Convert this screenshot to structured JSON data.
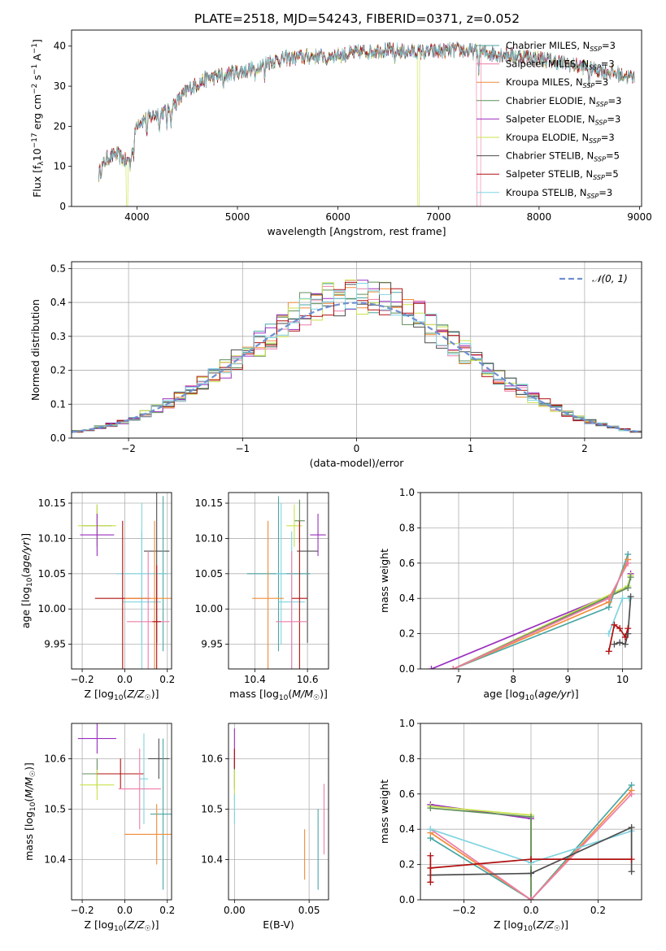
{
  "figure": {
    "title": "PLATE=2518, MJD=54243, FIBERID=0371, z=0.052"
  },
  "colors": {
    "Chabrier MILES": "#4aa6a6",
    "Salpeter MILES": "#ee7ca8",
    "Kroupa MILES": "#f08c38",
    "Chabrier ELODIE": "#5f8f5a",
    "Salpeter ELODIE": "#9b2fbf",
    "Kroupa ELODIE": "#c9e24a",
    "Chabrier STELIB": "#4d4d4d",
    "Salpeter STELIB": "#b01010",
    "Kroupa STELIB": "#80d4e0",
    "fit_blue": "#5b86d6",
    "normal": "#6f8fd0"
  },
  "chart_data": [
    {
      "id": "spectrum",
      "type": "line",
      "title": "PLATE=2518, MJD=54243, FIBERID=0371, z=0.052",
      "xlabel": "wavelength [Angstrom, rest frame]",
      "ylabel": "Flux [f_λ 10^-17 erg cm^-2 s^-1 A^-1]",
      "xlim": [
        3350,
        9020
      ],
      "ylim": [
        0,
        44
      ],
      "xticks": [
        4000,
        5000,
        6000,
        7000,
        8000,
        9000
      ],
      "yticks": [
        0,
        10,
        20,
        30,
        40
      ],
      "grid": false,
      "legend_position": "right",
      "series": [
        {
          "name": "Chabrier MILES, N_SSP=3"
        },
        {
          "name": "Salpeter MILES, N_SSP=3"
        },
        {
          "name": "Kroupa MILES, N_SSP=3"
        },
        {
          "name": "Chabrier ELODIE, N_SSP=3"
        },
        {
          "name": "Salpeter ELODIE, N_SSP=3"
        },
        {
          "name": "Kroupa ELODIE, N_SSP=3"
        },
        {
          "name": "Chabrier STELIB, N_SSP=5"
        },
        {
          "name": "Salpeter STELIB, N_SSP=5"
        },
        {
          "name": "Kroupa STELIB, N_SSP=3"
        }
      ],
      "continuum": {
        "x": [
          3620,
          3700,
          3800,
          3900,
          3950,
          4000,
          4100,
          4200,
          4300,
          4400,
          4500,
          4700,
          4900,
          5100,
          5300,
          5500,
          5800,
          6100,
          6400,
          6800,
          7200,
          7600,
          8000,
          8400,
          8800,
          8950
        ],
        "y": [
          8,
          12,
          13,
          11,
          14,
          21,
          22,
          23,
          24,
          26,
          29,
          32,
          33,
          34,
          36,
          37,
          37.5,
          38,
          39,
          38.5,
          39,
          38,
          37,
          35,
          33,
          32
        ]
      }
    },
    {
      "id": "residuals",
      "type": "histogram",
      "xlabel": "(data-model)/error",
      "ylabel": "Normed distribution",
      "xlim": [
        -2.5,
        2.5
      ],
      "ylim": [
        0,
        0.52
      ],
      "xticks": [
        -2,
        -1,
        0,
        1,
        2
      ],
      "yticks": [
        0.0,
        0.1,
        0.2,
        0.3,
        0.4,
        0.5
      ],
      "grid": true,
      "legend": [
        "𝒩(0, 1)"
      ],
      "legend_position": "top-right",
      "bin_width": 0.1
    },
    {
      "id": "age_vs_Z",
      "type": "scatter",
      "xlabel": "Z [log10(Z/Z☉)]",
      "ylabel": "age [log10(age/yr)]",
      "xlim": [
        -0.25,
        0.22
      ],
      "ylim": [
        9.915,
        10.165
      ],
      "xticks": [
        -0.2,
        0.0,
        0.2
      ],
      "yticks": [
        9.95,
        10.0,
        10.05,
        10.1,
        10.15
      ],
      "grid": true,
      "points": [
        {
          "name": "Chabrier ELODIE",
          "x": -0.13,
          "y": 10.118,
          "xerr": 0.07,
          "yerr": 0.03
        },
        {
          "name": "Kroupa ELODIE",
          "x": -0.13,
          "y": 10.118,
          "xerr": 0.09,
          "yerr": 0.03
        },
        {
          "name": "Salpeter ELODIE",
          "x": -0.13,
          "y": 10.105,
          "xerr": 0.08,
          "yerr": 0.03
        },
        {
          "name": "Chabrier STELIB",
          "x": 0.15,
          "y": 10.082,
          "xerr": 0.06,
          "yerr": 0.13
        },
        {
          "name": "Chabrier MILES",
          "x": 0.18,
          "y": 10.05,
          "xerr": 0.02,
          "yerr": 0.11
        },
        {
          "name": "Kroupa STELIB",
          "x": 0.08,
          "y": 10.05,
          "xerr": 0.12,
          "yerr": 0.1
        },
        {
          "name": "Kroupa STELIB",
          "x": 0.08,
          "y": 10.01,
          "xerr": 0.09,
          "yerr": 0.1
        },
        {
          "name": "Salpeter STELIB",
          "x": -0.01,
          "y": 10.015,
          "xerr": 0.13,
          "yerr": 0.11
        },
        {
          "name": "Kroupa MILES",
          "x": 0.14,
          "y": 10.015,
          "xerr": 0.14,
          "yerr": 0.11
        },
        {
          "name": "Salpeter MILES",
          "x": 0.11,
          "y": 9.982,
          "xerr": 0.1,
          "yerr": 0.1
        },
        {
          "name": "Salpeter STELIB",
          "x": 0.15,
          "y": 9.982,
          "xerr": 0.02,
          "yerr": 0.08
        }
      ]
    },
    {
      "id": "age_vs_mass",
      "type": "scatter",
      "xlabel": "mass [log10(M/M☉)]",
      "ylabel": "",
      "xlim": [
        10.3,
        10.68
      ],
      "ylim": [
        9.915,
        10.165
      ],
      "xticks": [
        10.4,
        10.6
      ],
      "yticks": [
        9.95,
        10.0,
        10.05,
        10.1,
        10.15
      ],
      "grid": true,
      "points": [
        {
          "name": "Chabrier ELODIE",
          "x": 10.57,
          "y": 10.125,
          "xerr": 0.02,
          "yerr": 0.03
        },
        {
          "name": "Kroupa ELODIE",
          "x": 10.55,
          "y": 10.118,
          "xerr": 0.03,
          "yerr": 0.03
        },
        {
          "name": "Salpeter ELODIE",
          "x": 10.64,
          "y": 10.105,
          "xerr": 0.03,
          "yerr": 0.03
        },
        {
          "name": "Chabrier STELIB",
          "x": 10.6,
          "y": 10.082,
          "xerr": 0.04,
          "yerr": 0.13
        },
        {
          "name": "Chabrier MILES",
          "x": 10.49,
          "y": 10.05,
          "xerr": 0.12,
          "yerr": 0.11
        },
        {
          "name": "Kroupa STELIB",
          "x": 10.5,
          "y": 10.05,
          "xerr": 0.02,
          "yerr": 0.1
        },
        {
          "name": "Kroupa STELIB",
          "x": 10.54,
          "y": 10.01,
          "xerr": 0.05,
          "yerr": 0.1
        },
        {
          "name": "Salpeter STELIB",
          "x": 10.57,
          "y": 10.015,
          "xerr": 0.03,
          "yerr": 0.11
        },
        {
          "name": "Kroupa MILES",
          "x": 10.45,
          "y": 10.015,
          "xerr": 0.06,
          "yerr": 0.11
        },
        {
          "name": "Salpeter MILES",
          "x": 10.54,
          "y": 9.982,
          "xerr": 0.06,
          "yerr": 0.1
        }
      ]
    },
    {
      "id": "mass_weight_vs_age",
      "type": "line",
      "xlabel": "age [log10(age/yr)]",
      "ylabel": "mass weight",
      "xlim": [
        6.3,
        10.35
      ],
      "ylim": [
        0,
        1.0
      ],
      "xticks": [
        7,
        8,
        9,
        10
      ],
      "yticks": [
        0.0,
        0.2,
        0.4,
        0.6,
        0.8,
        1.0
      ],
      "grid": true,
      "series": [
        {
          "name": "Salpeter ELODIE",
          "x": [
            6.5,
            10.1,
            10.15
          ],
          "y": [
            0.0,
            0.46,
            0.54
          ]
        },
        {
          "name": "Kroupa ELODIE",
          "x": [
            6.9,
            10.1,
            10.15
          ],
          "y": [
            0.0,
            0.47,
            0.53
          ]
        },
        {
          "name": "Chabrier ELODIE",
          "x": [
            6.9,
            10.1,
            10.15
          ],
          "y": [
            0.0,
            0.46,
            0.52
          ]
        },
        {
          "name": "Chabrier MILES",
          "x": [
            6.9,
            9.75,
            10.1
          ],
          "y": [
            0.0,
            0.35,
            0.65
          ]
        },
        {
          "name": "Kroupa MILES",
          "x": [
            6.9,
            9.75,
            10.1
          ],
          "y": [
            0.0,
            0.38,
            0.62
          ]
        },
        {
          "name": "Salpeter MILES",
          "x": [
            6.9,
            9.75,
            10.1
          ],
          "y": [
            0.0,
            0.4,
            0.6
          ]
        },
        {
          "name": "Kroupa STELIB",
          "x": [
            9.75,
            10.0,
            10.12
          ],
          "y": [
            0.2,
            0.4,
            0.4
          ]
        },
        {
          "name": "Chabrier STELIB",
          "x": [
            9.85,
            9.95,
            10.05,
            10.1,
            10.15
          ],
          "y": [
            0.14,
            0.15,
            0.14,
            0.2,
            0.41
          ]
        },
        {
          "name": "Salpeter STELIB",
          "x": [
            9.75,
            9.85,
            9.95,
            10.05,
            10.1
          ],
          "y": [
            0.1,
            0.25,
            0.23,
            0.18,
            0.23
          ]
        }
      ]
    },
    {
      "id": "mass_vs_Z",
      "type": "scatter",
      "xlabel": "Z [log10(Z/Z☉)]",
      "ylabel": "mass [log10(M/M☉)]",
      "xlim": [
        -0.25,
        0.22
      ],
      "ylim": [
        10.32,
        10.67
      ],
      "xticks": [
        -0.2,
        0.0,
        0.2
      ],
      "yticks": [
        10.4,
        10.5,
        10.6
      ],
      "grid": true,
      "points": [
        {
          "name": "Salpeter ELODIE",
          "x": -0.13,
          "y": 10.64,
          "xerr": 0.09,
          "yerr": 0.03
        },
        {
          "name": "Chabrier ELODIE",
          "x": -0.13,
          "y": 10.57,
          "xerr": 0.07,
          "yerr": 0.03
        },
        {
          "name": "Kroupa ELODIE",
          "x": -0.13,
          "y": 10.548,
          "xerr": 0.08,
          "yerr": 0.03
        },
        {
          "name": "Chabrier STELIB",
          "x": 0.16,
          "y": 10.6,
          "xerr": 0.05,
          "yerr": 0.04
        },
        {
          "name": "Salpeter STELIB",
          "x": -0.02,
          "y": 10.57,
          "xerr": 0.11,
          "yerr": 0.03
        },
        {
          "name": "Kroupa STELIB",
          "x": 0.09,
          "y": 10.56,
          "xerr": 0.02,
          "yerr": 0.09
        },
        {
          "name": "Salpeter MILES",
          "x": 0.07,
          "y": 10.54,
          "xerr": 0.1,
          "yerr": 0.08
        },
        {
          "name": "Chabrier MILES",
          "x": 0.18,
          "y": 10.49,
          "xerr": 0.06,
          "yerr": 0.15
        },
        {
          "name": "Kroupa MILES",
          "x": 0.15,
          "y": 10.45,
          "xerr": 0.15,
          "yerr": 0.06
        }
      ]
    },
    {
      "id": "ebv",
      "type": "scatter",
      "xlabel": "E(B-V)",
      "ylabel": "",
      "xlim": [
        -0.004,
        0.063
      ],
      "ylim": [
        10.32,
        10.67
      ],
      "xticks": [
        0.0,
        0.05
      ],
      "yticks": [
        10.4,
        10.5,
        10.6
      ],
      "grid": true,
      "points": [
        {
          "name": "Salpeter ELODIE",
          "x": 0.0,
          "y": 10.62,
          "yerr": 0.04
        },
        {
          "name": "Chabrier ELODIE",
          "x": 0.0,
          "y": 10.57,
          "yerr": 0.03
        },
        {
          "name": "Kroupa ELODIE",
          "x": 0.0,
          "y": 10.548,
          "yerr": 0.03
        },
        {
          "name": "Salpeter STELIB",
          "x": 0.0,
          "y": 10.6,
          "yerr": 0.02
        },
        {
          "name": "Kroupa STELIB",
          "x": 0.0,
          "y": 10.5,
          "yerr": 0.03
        },
        {
          "name": "Kroupa MILES",
          "x": 0.047,
          "y": 10.41,
          "yerr": 0.05
        },
        {
          "name": "Chabrier MILES",
          "x": 0.056,
          "y": 10.42,
          "yerr": 0.08
        },
        {
          "name": "Salpeter MILES",
          "x": 0.06,
          "y": 10.48,
          "yerr": 0.07
        }
      ]
    },
    {
      "id": "mass_weight_vs_Z",
      "type": "line",
      "xlabel": "Z [log10(Z/Z☉)]",
      "ylabel": "mass weight",
      "xlim": [
        -0.33,
        0.33
      ],
      "ylim": [
        0,
        1.0
      ],
      "xticks": [
        -0.2,
        0.0,
        0.2
      ],
      "yticks": [
        0.0,
        0.2,
        0.4,
        0.6,
        0.8,
        1.0
      ],
      "grid": true,
      "series": [
        {
          "name": "Salpeter ELODIE",
          "x": [
            -0.3,
            0.0,
            0.0
          ],
          "y": [
            0.54,
            0.46,
            0.0
          ]
        },
        {
          "name": "Kroupa ELODIE",
          "x": [
            -0.3,
            0.0,
            0.0
          ],
          "y": [
            0.53,
            0.48,
            0.0
          ]
        },
        {
          "name": "Chabrier ELODIE",
          "x": [
            -0.3,
            0.0,
            0.0
          ],
          "y": [
            0.52,
            0.47,
            0.0
          ]
        },
        {
          "name": "Chabrier MILES",
          "x": [
            -0.3,
            0.0,
            0.3
          ],
          "y": [
            0.35,
            0.0,
            0.65
          ]
        },
        {
          "name": "Kroupa MILES",
          "x": [
            -0.3,
            0.0,
            0.3
          ],
          "y": [
            0.38,
            0.0,
            0.62
          ]
        },
        {
          "name": "Salpeter MILES",
          "x": [
            -0.3,
            0.0,
            0.3
          ],
          "y": [
            0.4,
            0.0,
            0.6
          ]
        },
        {
          "name": "Kroupa STELIB",
          "x": [
            -0.3,
            0.0,
            0.3
          ],
          "y": [
            0.4,
            0.21,
            0.39
          ]
        },
        {
          "name": "Chabrier STELIB",
          "x": [
            -0.3,
            0.0,
            0.3,
            0.3
          ],
          "y": [
            0.14,
            0.15,
            0.41,
            0.16
          ]
        },
        {
          "name": "Salpeter STELIB",
          "x": [
            -0.3,
            -0.3,
            -0.3,
            0.0,
            0.3
          ],
          "y": [
            0.1,
            0.25,
            0.18,
            0.23,
            0.23
          ]
        }
      ]
    }
  ]
}
